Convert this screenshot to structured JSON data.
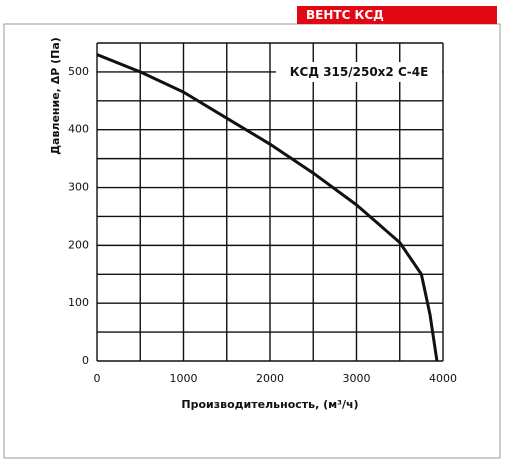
{
  "chart_data": {
    "type": "line",
    "brand": "ВЕНТС КСД",
    "model_label": "КСД 315/250x2 С-4Е",
    "x_label": "Производительность, (м³/ч)",
    "y_label": "Давление, ΔP (Па)",
    "x": [
      0,
      500,
      1000,
      1500,
      2000,
      2500,
      3000,
      3500,
      3750,
      3850,
      3900,
      3930
    ],
    "series": [
      {
        "name": "КСД 315/250x2 С-4Е",
        "color": "#111111",
        "values": [
          530,
          500,
          465,
          420,
          375,
          325,
          270,
          205,
          150,
          80,
          30,
          0
        ]
      }
    ],
    "xlim": [
      0,
      4000
    ],
    "ylim": [
      0,
      550
    ],
    "xticks": [
      0,
      1000,
      2000,
      3000,
      4000
    ],
    "yticks": [
      0,
      100,
      200,
      300,
      400,
      500
    ],
    "xgrid": [
      0,
      500,
      1000,
      1500,
      2000,
      2500,
      3000,
      3500,
      4000
    ],
    "ygrid": [
      0,
      50,
      100,
      150,
      200,
      250,
      300,
      350,
      400,
      450,
      500,
      550
    ],
    "grid": true
  }
}
